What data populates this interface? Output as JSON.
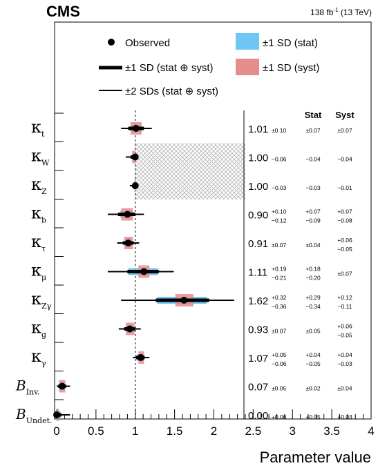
{
  "header": {
    "experiment": "CMS",
    "luminosity": "138 fb",
    "luminosity_exp": "-1",
    "energy": " (13 TeV)"
  },
  "legend": {
    "observed": "Observed",
    "sd1_total": "±1 SD (stat ⊕ syst)",
    "sd2_total": "±2 SDs (stat ⊕ syst)",
    "sd1_stat": "±1 SD (stat)",
    "sd1_syst": "±1 SD (syst)"
  },
  "columns": {
    "stat": "Stat",
    "syst": "Syst"
  },
  "colors": {
    "stat_band": "#6ec6f2",
    "syst_band": "#e58c8c",
    "hatch": "#aaaaaa"
  },
  "chart_data": {
    "type": "scatter",
    "xlabel": "Parameter value",
    "xlim": [
      0,
      4
    ],
    "xticks": [
      "0",
      "0.5",
      "1",
      "1.5",
      "2",
      "2.5",
      "3",
      "3.5",
      "4"
    ],
    "reference_line": 1,
    "shaded_region": {
      "x_from": 1.0,
      "x_to": 2.4,
      "parameters": [
        "κW",
        "κZ"
      ],
      "pattern": "hatched"
    },
    "parameters": [
      {
        "base": "κ",
        "sub": "t",
        "value": 1.01,
        "total_up": 0.1,
        "total_down": 0.1,
        "total_text": "±0.10",
        "stat_up": 0.07,
        "stat_down": 0.07,
        "stat_text": "±0.07",
        "syst_up": 0.07,
        "syst_down": 0.07,
        "syst_text": "±0.07",
        "sd2_up": 0.2,
        "sd2_down": 0.19
      },
      {
        "base": "κ",
        "sub": "W",
        "value": 1.0,
        "total_up": 0.0,
        "total_down": 0.06,
        "total_text": "−0.06",
        "stat_up": 0.0,
        "stat_down": 0.04,
        "stat_text": "−0.04",
        "syst_up": 0.0,
        "syst_down": 0.04,
        "syst_text": "−0.04",
        "sd2_up": 0.0,
        "sd2_down": 0.12
      },
      {
        "base": "κ",
        "sub": "Z",
        "value": 1.0,
        "total_up": 0.0,
        "total_down": 0.03,
        "total_text": "−0.03",
        "stat_up": 0.0,
        "stat_down": 0.03,
        "stat_text": "−0.03",
        "syst_up": 0.0,
        "syst_down": 0.01,
        "syst_text": "−0.01",
        "sd2_up": 0.0,
        "sd2_down": 0.07
      },
      {
        "base": "κ",
        "sub": "b",
        "value": 0.9,
        "total_up": 0.1,
        "total_down": 0.12,
        "total_up_text": "+0.10",
        "total_down_text": "−0.12",
        "stat_up": 0.07,
        "stat_down": 0.09,
        "stat_up_text": "+0.07",
        "stat_down_text": "−0.09",
        "syst_up": 0.07,
        "syst_down": 0.08,
        "syst_up_text": "+0.07",
        "syst_down_text": "−0.08",
        "sd2_up": 0.21,
        "sd2_down": 0.25
      },
      {
        "base": "κ",
        "sub": "τ",
        "value": 0.91,
        "total_up": 0.07,
        "total_down": 0.07,
        "total_text": "±0.07",
        "stat_up": 0.04,
        "stat_down": 0.04,
        "stat_text": "±0.04",
        "syst_up": 0.06,
        "syst_down": 0.05,
        "syst_up_text": "+0.06",
        "syst_down_text": "−0.05",
        "sd2_up": 0.14,
        "sd2_down": 0.14
      },
      {
        "base": "κ",
        "sub": "μ",
        "value": 1.11,
        "total_up": 0.19,
        "total_down": 0.21,
        "total_up_text": "+0.19",
        "total_down_text": "−0.21",
        "stat_up": 0.18,
        "stat_down": 0.2,
        "stat_up_text": "+0.18",
        "stat_down_text": "−0.20",
        "syst_up": 0.07,
        "syst_down": 0.07,
        "syst_text": "±0.07",
        "sd2_up": 0.38,
        "sd2_down": 0.46
      },
      {
        "base": "κ",
        "sub": "Zγ",
        "value": 1.62,
        "total_up": 0.32,
        "total_down": 0.36,
        "total_up_text": "+0.32",
        "total_down_text": "−0.36",
        "stat_up": 0.29,
        "stat_down": 0.34,
        "stat_up_text": "+0.29",
        "stat_down_text": "−0.34",
        "syst_up": 0.12,
        "syst_down": 0.11,
        "syst_up_text": "+0.12",
        "syst_down_text": "−0.11",
        "sd2_up": 0.64,
        "sd2_down": 0.8
      },
      {
        "base": "κ",
        "sub": "g",
        "value": 0.93,
        "total_up": 0.07,
        "total_down": 0.07,
        "total_text": "±0.07",
        "stat_up": 0.05,
        "stat_down": 0.05,
        "stat_text": "±0.05",
        "syst_up": 0.06,
        "syst_down": 0.05,
        "syst_up_text": "+0.06",
        "syst_down_text": "−0.05",
        "sd2_up": 0.14,
        "sd2_down": 0.14
      },
      {
        "base": "κ",
        "sub": "γ",
        "value": 1.07,
        "total_up": 0.05,
        "total_down": 0.06,
        "total_up_text": "+0.05",
        "total_down_text": "−0.06",
        "stat_up": 0.04,
        "stat_down": 0.05,
        "stat_up_text": "+0.04",
        "stat_down_text": "−0.05",
        "syst_up": 0.04,
        "syst_down": 0.03,
        "syst_up_text": "+0.04",
        "syst_down_text": "−0.03",
        "sd2_up": 0.11,
        "sd2_down": 0.1
      },
      {
        "base": "B",
        "sub": "Inv.",
        "value": 0.07,
        "total_up": 0.05,
        "total_down": 0.05,
        "total_text": "±0.05",
        "stat_up": 0.02,
        "stat_down": 0.02,
        "stat_text": "±0.02",
        "syst_up": 0.04,
        "syst_down": 0.04,
        "syst_text": "±0.04",
        "sd2_up": 0.1,
        "sd2_down": 0.07
      },
      {
        "base": "B",
        "sub": "Undet.",
        "value": 0.0,
        "total_up": 0.06,
        "total_down": 0.0,
        "total_text": "+0.06",
        "stat_up": 0.05,
        "stat_down": 0.0,
        "stat_text": "+0.05",
        "syst_up": 0.03,
        "syst_down": 0.0,
        "syst_text": "+0.03",
        "sd2_up": 0.17,
        "sd2_down": 0.0
      }
    ]
  }
}
